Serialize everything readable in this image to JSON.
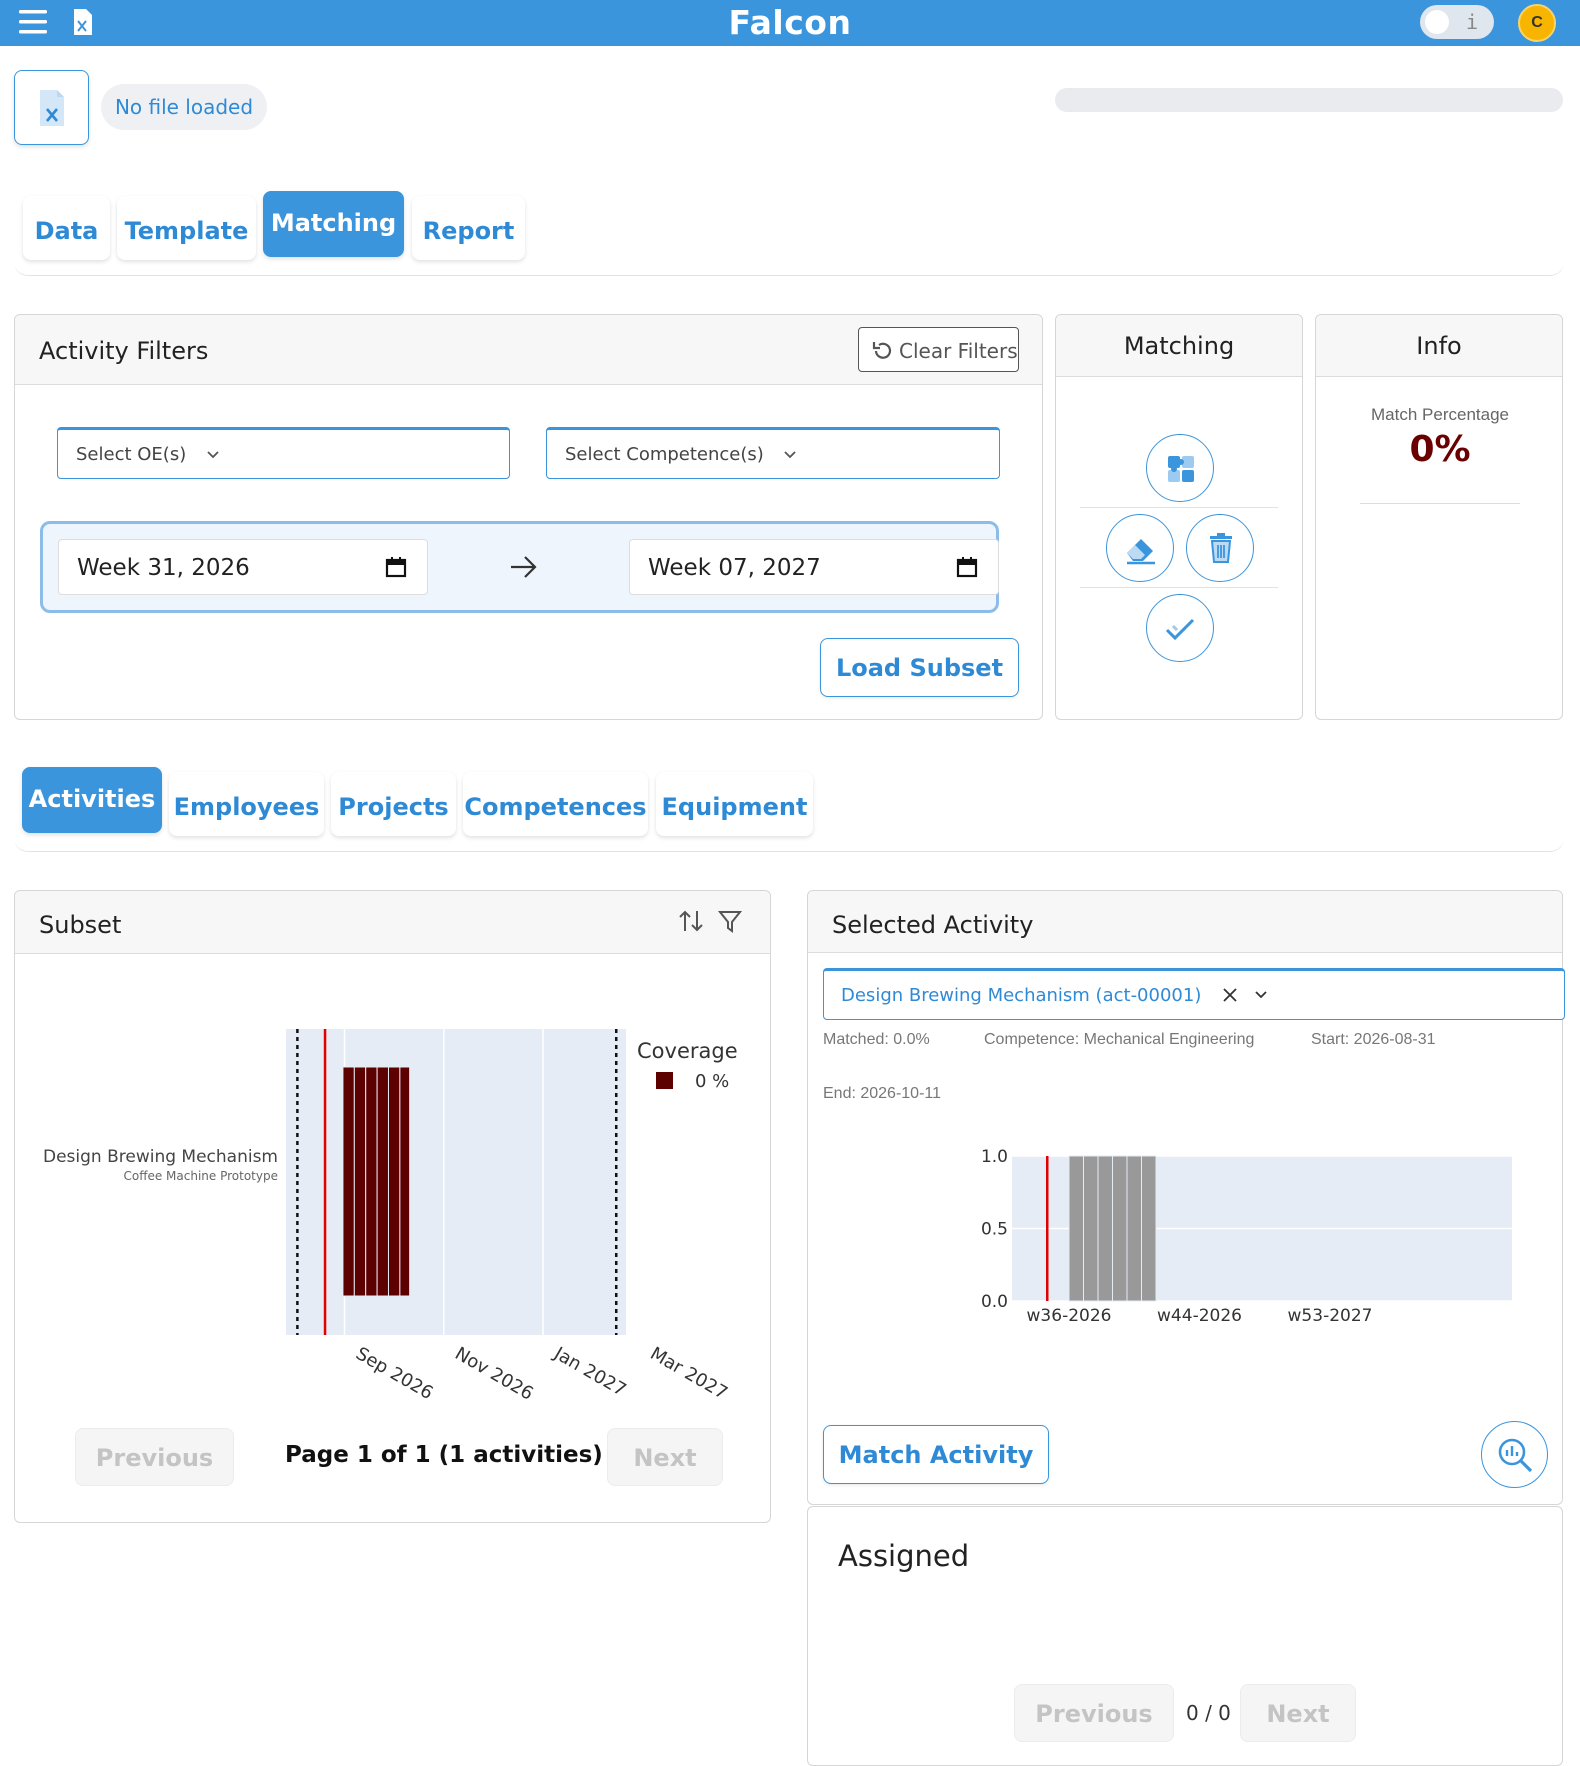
{
  "header": {
    "brand": "Falcon",
    "toggle_label": "i",
    "avatar_initial": "C",
    "accent_color": "#3b95dc",
    "menu_icon": "hamburger-menu-icon",
    "file_icon": "excel-file-icon"
  },
  "file": {
    "status": "No file loaded"
  },
  "main_tabs": [
    {
      "label": "Data",
      "active": false
    },
    {
      "label": "Template",
      "active": false
    },
    {
      "label": "Matching",
      "active": true
    },
    {
      "label": "Report",
      "active": false
    }
  ],
  "activity_filters": {
    "title": "Activity Filters",
    "clear_label": "Clear Filters",
    "oe_placeholder": "Select OE(s)",
    "competence_placeholder": "Select Competence(s)",
    "start_week": "Week 31, 2026",
    "end_week": "Week 07, 2027",
    "load_label": "Load Subset"
  },
  "matching_panel": {
    "title": "Matching"
  },
  "info_panel": {
    "title": "Info",
    "match_label": "Match Percentage",
    "match_value": "0%",
    "match_color": "#6b0000"
  },
  "sub_tabs": [
    {
      "label": "Activities",
      "active": true
    },
    {
      "label": "Employees",
      "active": false
    },
    {
      "label": "Projects",
      "active": false
    },
    {
      "label": "Competences",
      "active": false
    },
    {
      "label": "Equipment",
      "active": false
    }
  ],
  "subset": {
    "title": "Subset",
    "activity_name": "Design Brewing Mechanism",
    "project_name": "Coffee Machine Prototype",
    "legend_title": "Coverage",
    "legend_value": "0 %",
    "prev_label": "Previous",
    "page_info": "Page 1 of 1 (1 activities)",
    "next_label": "Next"
  },
  "selected_activity": {
    "title": "Selected Activity",
    "selected_value": "Design Brewing Mechanism (act-00001)",
    "matched": "Matched: 0.0%",
    "competence": "Competence: Mechanical Engineering",
    "start": "Start: 2026-08-31",
    "end": "End: 2026-10-11",
    "match_button": "Match Activity"
  },
  "assigned": {
    "title": "Assigned",
    "prev_label": "Previous",
    "count": "0 / 0",
    "next_label": "Next"
  },
  "chart_data": [
    {
      "type": "bar",
      "orientation": "horizontal-gantt",
      "categories": [
        "Design Brewing Mechanism"
      ],
      "x_ticks": [
        "Sep 2026",
        "Nov 2026",
        "Jan 2027",
        "Mar 2027"
      ],
      "x_range": [
        "2026-07-27",
        "2027-02-21"
      ],
      "dotted_lines": [
        "2026-08-03",
        "2027-02-15"
      ],
      "today_line": "2026-08-20",
      "bars": [
        {
          "start": "2026-08-31",
          "end": "2026-09-07",
          "coverage": 0
        },
        {
          "start": "2026-09-07",
          "end": "2026-09-14",
          "coverage": 0
        },
        {
          "start": "2026-09-14",
          "end": "2026-09-21",
          "coverage": 0
        },
        {
          "start": "2026-09-21",
          "end": "2026-09-28",
          "coverage": 0
        },
        {
          "start": "2026-09-28",
          "end": "2026-10-05",
          "coverage": 0
        },
        {
          "start": "2026-10-05",
          "end": "2026-10-11",
          "coverage": 0
        }
      ],
      "bar_color": "#5c0000",
      "legend_title": "Coverage",
      "legend_entries": [
        "0 %"
      ]
    },
    {
      "type": "bar",
      "x_ticks": [
        "w36-2026",
        "w44-2026",
        "w53-2027"
      ],
      "y_ticks": [
        "0.0",
        "0.5",
        "1.0"
      ],
      "ylim": [
        0,
        1
      ],
      "categories": [
        "w36-2026",
        "w37-2026",
        "w38-2026",
        "w39-2026",
        "w40-2026",
        "w41-2026"
      ],
      "values": [
        1,
        1,
        1,
        1,
        1,
        1
      ],
      "bar_color": "#999999",
      "today_line_week": 34.5
    }
  ]
}
